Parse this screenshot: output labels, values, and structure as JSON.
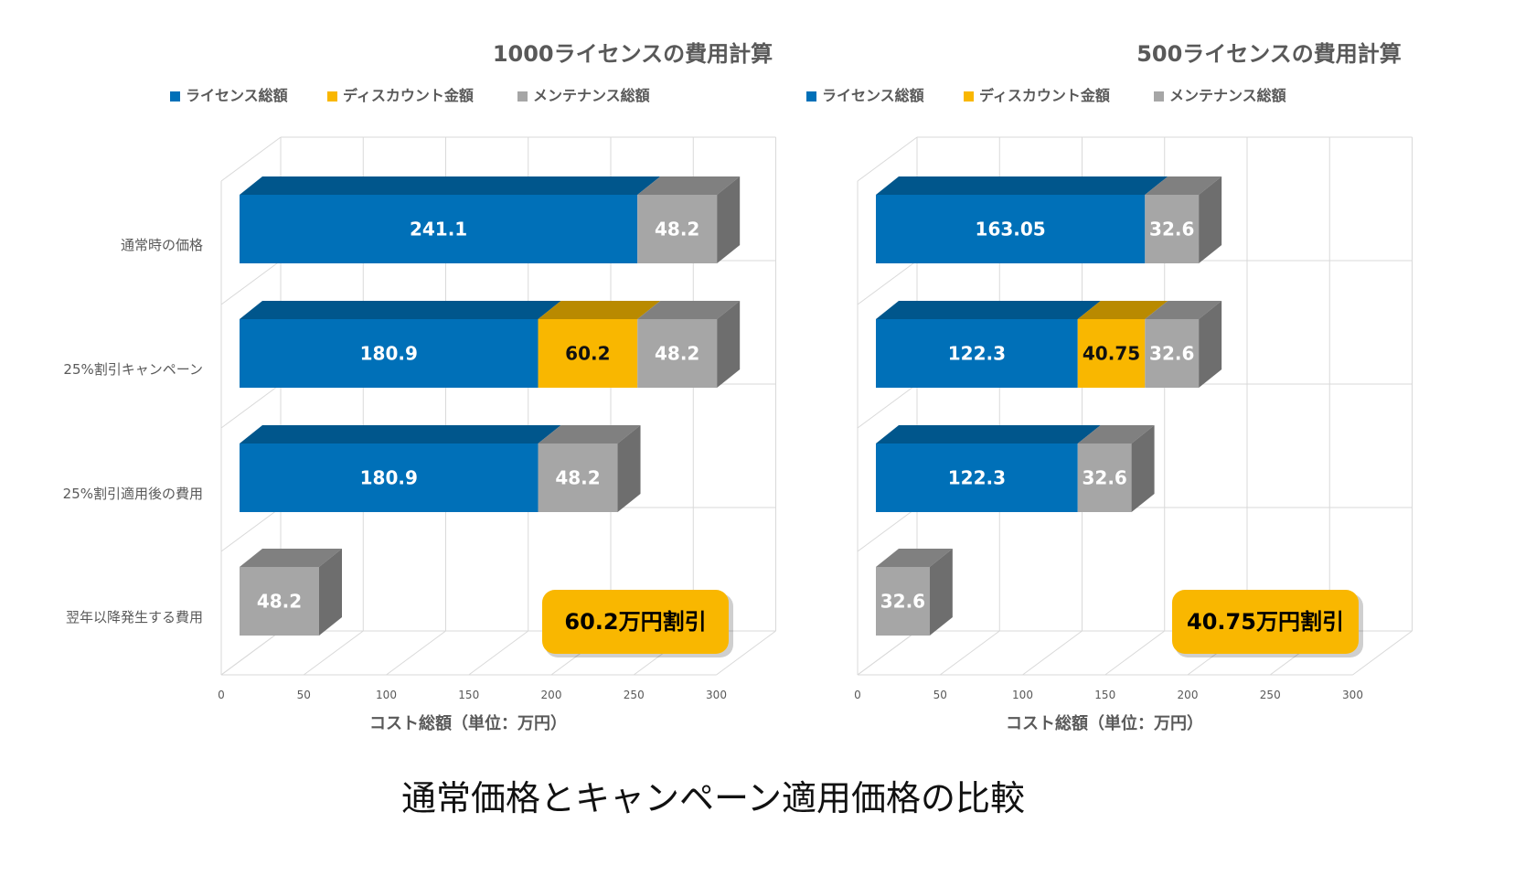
{
  "caption": "通常価格とキャンペーン適用価格の比較",
  "colors": {
    "license": "#0070B8",
    "discount": "#F9B700",
    "maintenance": "#A6A6A6"
  },
  "chart_data": [
    {
      "type": "bar",
      "stacked": true,
      "orientation": "horizontal",
      "3d": true,
      "title": "1000ライセンスの費用計算",
      "categories": [
        "通常時の価格",
        "25%割引キャンペーン",
        "25%割引適用後の費用",
        "翌年以降発生する費用"
      ],
      "series": [
        {
          "name": "ライセンス総額",
          "values": [
            241.1,
            180.9,
            180.9,
            null
          ]
        },
        {
          "name": "ディスカウント金額",
          "values": [
            null,
            60.2,
            null,
            null
          ]
        },
        {
          "name": "メンテナンス総額",
          "values": [
            48.2,
            48.2,
            48.2,
            48.2
          ]
        }
      ],
      "xlabel": "コスト総額（単位：万円）",
      "xlim": [
        0,
        300
      ],
      "xticks": [
        0,
        50,
        100,
        150,
        200,
        250,
        300
      ],
      "legend": "top",
      "grid": true,
      "annotation": "60.2万円割引"
    },
    {
      "type": "bar",
      "stacked": true,
      "orientation": "horizontal",
      "3d": true,
      "title": "500ライセンスの費用計算",
      "categories": [
        "通常時の価格",
        "25%割引キャンペーン",
        "25%割引適用後の費用",
        "翌年以降発生する費用"
      ],
      "series": [
        {
          "name": "ライセンス総額",
          "values": [
            163.05,
            122.3,
            122.3,
            null
          ]
        },
        {
          "name": "ディスカウント金額",
          "values": [
            null,
            40.75,
            null,
            null
          ]
        },
        {
          "name": "メンテナンス総額",
          "values": [
            32.6,
            32.6,
            32.6,
            32.6
          ]
        }
      ],
      "xlabel": "コスト総額（単位：万円）",
      "xlim": [
        0,
        300
      ],
      "xticks": [
        0,
        50,
        100,
        150,
        200,
        250,
        300
      ],
      "legend": "top",
      "grid": true,
      "annotation": "40.75万円割引"
    }
  ]
}
